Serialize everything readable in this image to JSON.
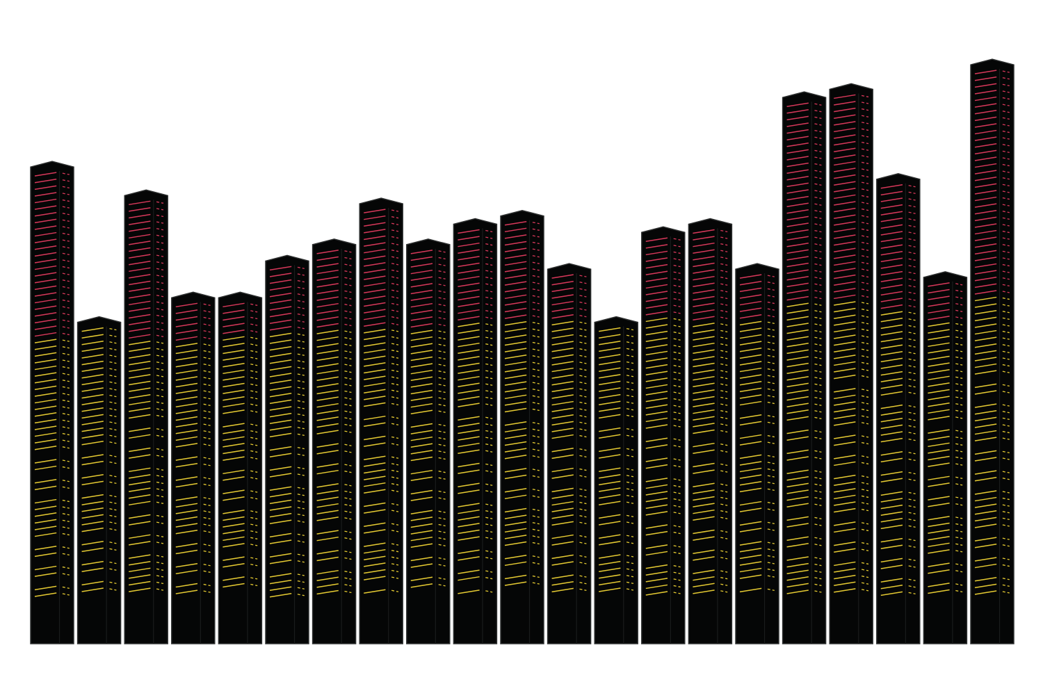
{
  "chart_data": {
    "type": "bar",
    "style": "skyscraper towers with lit window stripes",
    "values": [
      118,
      80,
      111,
      86,
      86,
      95,
      99,
      109,
      99,
      104,
      106,
      93,
      80,
      102,
      104,
      93,
      135,
      137,
      115,
      91,
      143
    ],
    "lit_yellow_share": [
      0.62,
      1.0,
      0.66,
      0.88,
      0.9,
      0.82,
      0.79,
      0.71,
      0.79,
      0.75,
      0.74,
      0.86,
      1.0,
      0.78,
      0.75,
      0.86,
      0.61,
      0.6,
      0.71,
      0.88,
      0.58
    ],
    "ylim": [
      0,
      150
    ],
    "grid": false,
    "legend": "none",
    "colors": {
      "tower": "#050606",
      "edge": "#2e3030",
      "window_upper": "#d8385a",
      "window_lower": "#e6cb32"
    }
  }
}
